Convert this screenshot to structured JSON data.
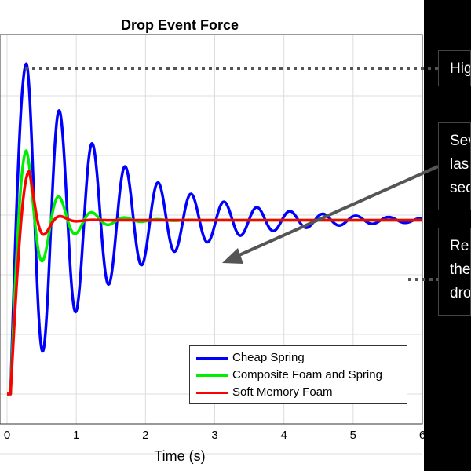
{
  "chart_data": {
    "type": "line",
    "title": "Drop Event Force",
    "xlabel": "Time (s)",
    "ylabel": "",
    "xlim": [
      0,
      6
    ],
    "ylim": [
      0,
      1
    ],
    "xticks": [
      "0",
      "1",
      "2",
      "3",
      "4",
      "5",
      "6"
    ],
    "grid": true,
    "legend_position": "bottom-right",
    "series": [
      {
        "name": "Cheap Spring",
        "color": "#0000ff",
        "model": {
          "start": 0.05,
          "rise": 0.28,
          "peak": 0.95,
          "steady": 0.5,
          "freq": 2.1,
          "decay": 0.75
        }
      },
      {
        "name": "Composite Foam and Spring",
        "color": "#00ee00",
        "model": {
          "start": 0.05,
          "rise": 0.28,
          "peak": 0.7,
          "steady": 0.5,
          "freq": 2.1,
          "decay": 2.3
        }
      },
      {
        "name": "Soft Memory Foam",
        "color": "#ff0000",
        "model": {
          "start": 0.05,
          "rise": 0.32,
          "peak": 0.64,
          "steady": 0.5,
          "freq": 2.1,
          "decay": 5.5
        }
      }
    ]
  },
  "callouts": {
    "high": "Hig",
    "several": "Sev\nlas\nsec",
    "return": "Re\nthe\ndro"
  }
}
